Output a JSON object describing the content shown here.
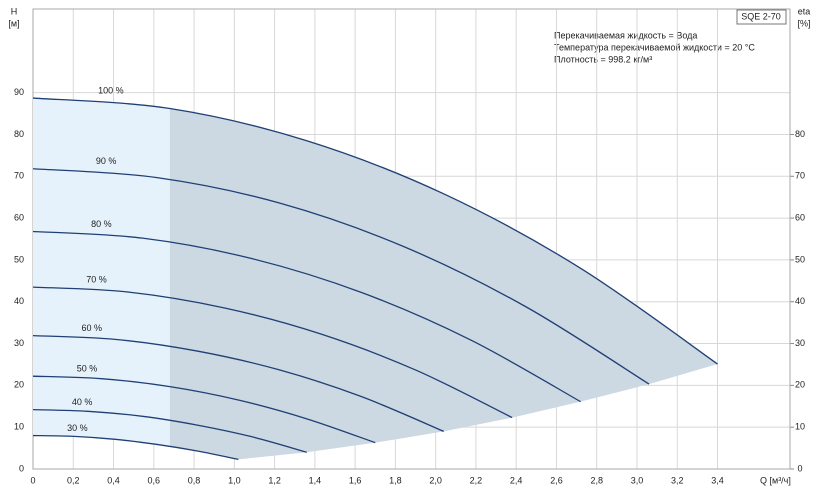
{
  "chart_data": {
    "type": "line",
    "y_label": "H",
    "y_unit": "[м]",
    "y2_label": "eta",
    "y2_unit": "[%]",
    "x_label": "Q [м³/ч]",
    "product": "SQE 2-70",
    "notes": [
      "Перекачиваемая жидкость = Вода",
      "Температура перекачиваемой жидкости = 20 °C",
      "Плотность = 998.2 кг/м³"
    ],
    "xlim": [
      0,
      3.76
    ],
    "ylim": [
      0,
      110
    ],
    "y2lim": [
      0,
      110
    ],
    "xticks": [
      {
        "value": 0,
        "label": "0"
      },
      {
        "value": 0.2,
        "label": "0,2"
      },
      {
        "value": 0.4,
        "label": "0,4"
      },
      {
        "value": 0.6,
        "label": "0,6"
      },
      {
        "value": 0.8,
        "label": "0,8"
      },
      {
        "value": 1.0,
        "label": "1,0"
      },
      {
        "value": 1.2,
        "label": "1,2"
      },
      {
        "value": 1.4,
        "label": "1,4"
      },
      {
        "value": 1.6,
        "label": "1,6"
      },
      {
        "value": 1.8,
        "label": "1,8"
      },
      {
        "value": 2.0,
        "label": "2,0"
      },
      {
        "value": 2.2,
        "label": "2,2"
      },
      {
        "value": 2.4,
        "label": "2,4"
      },
      {
        "value": 2.6,
        "label": "2,6"
      },
      {
        "value": 2.8,
        "label": "2,8"
      },
      {
        "value": 3.0,
        "label": "3,0"
      },
      {
        "value": 3.2,
        "label": "3,2"
      },
      {
        "value": 3.4,
        "label": "3,4"
      }
    ],
    "yticks": [
      0,
      10,
      20,
      30,
      40,
      50,
      60,
      70,
      80,
      90
    ],
    "y2ticks": [
      0,
      10,
      20,
      30,
      40,
      50,
      60,
      70,
      80
    ],
    "grid": true,
    "series": [
      {
        "name": "100 %",
        "color": "#1f3f75",
        "x": [
          0,
          0.68,
          1.36,
          2.04,
          2.72,
          3.4
        ],
        "values": [
          88.7,
          86.2,
          78.5,
          65.8,
          48.0,
          25.1
        ]
      },
      {
        "name": "90 %",
        "color": "#1f3f75",
        "x": [
          0,
          0.612,
          1.224,
          1.836,
          2.448,
          3.06
        ],
        "values": [
          71.8,
          69.7,
          63.6,
          53.3,
          38.8,
          20.3
        ]
      },
      {
        "name": "80 %",
        "color": "#1f3f75",
        "x": [
          0,
          0.544,
          1.088,
          1.632,
          2.176,
          2.72
        ],
        "values": [
          56.8,
          55.2,
          50.3,
          42.2,
          30.8,
          16.1
        ]
      },
      {
        "name": "70 %",
        "color": "#1f3f75",
        "x": [
          0,
          0.476,
          0.952,
          1.428,
          1.904,
          2.38
        ],
        "values": [
          43.5,
          42.3,
          38.5,
          32.3,
          23.6,
          12.3
        ]
      },
      {
        "name": "60 %",
        "color": "#1f3f75",
        "x": [
          0,
          0.408,
          0.816,
          1.224,
          1.632,
          2.04
        ],
        "values": [
          31.9,
          31.0,
          28.2,
          23.7,
          17.3,
          9.0
        ]
      },
      {
        "name": "50 %",
        "color": "#1f3f75",
        "x": [
          0,
          0.34,
          0.68,
          1.02,
          1.36,
          1.7
        ],
        "values": [
          22.2,
          21.6,
          19.7,
          16.5,
          12.0,
          6.3
        ]
      },
      {
        "name": "40 %",
        "color": "#1f3f75",
        "x": [
          0,
          0.272,
          0.544,
          0.816,
          1.088,
          1.36
        ],
        "values": [
          14.2,
          13.8,
          12.6,
          10.5,
          7.7,
          4.0
        ]
      },
      {
        "name": "30 %",
        "color": "#1f3f75",
        "x": [
          0,
          0.204,
          0.408,
          0.612,
          0.816,
          1.02
        ],
        "values": [
          8.0,
          7.8,
          7.1,
          5.9,
          4.3,
          2.3
        ]
      }
    ]
  }
}
